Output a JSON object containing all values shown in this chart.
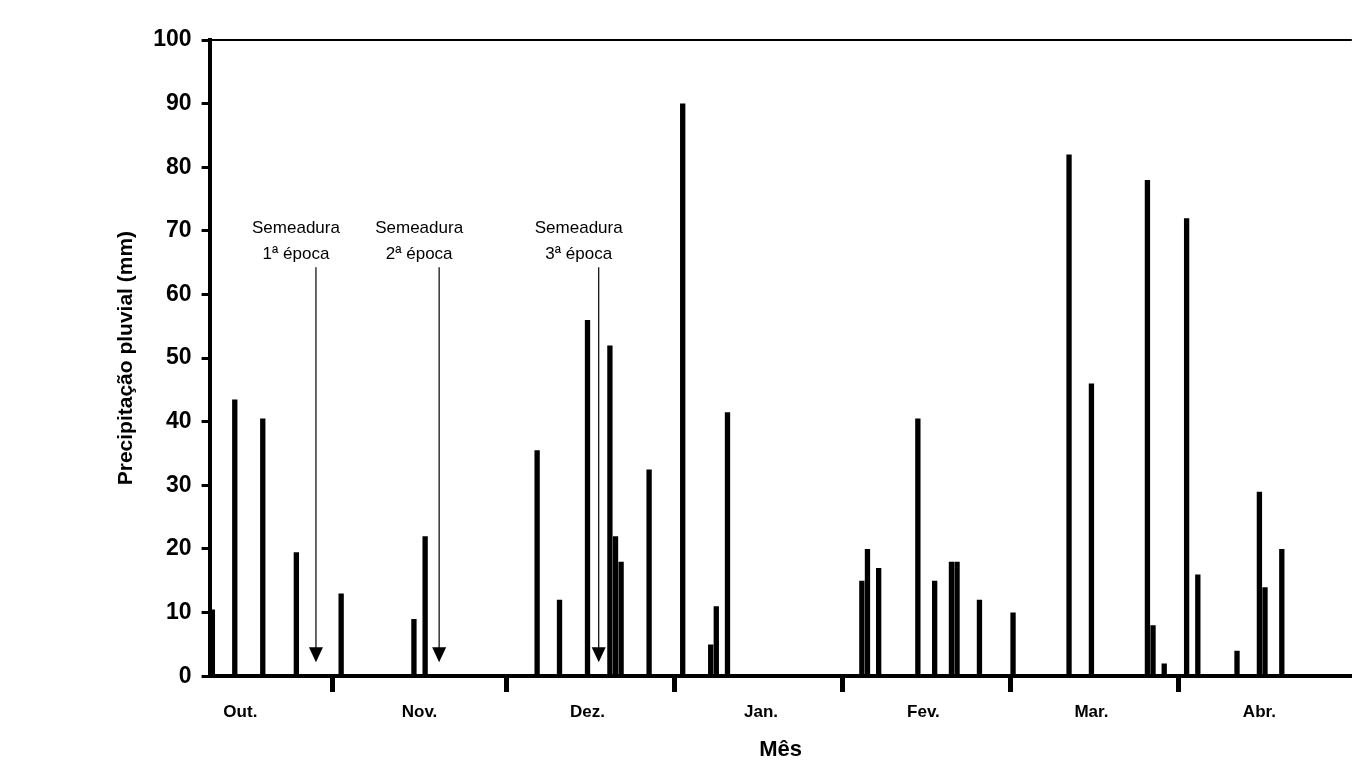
{
  "chart_data": {
    "type": "bar",
    "xlabel": "Mês",
    "ylabel": "Precipitação pluvial (mm)",
    "categories": [
      null,
      null,
      null,
      null,
      null,
      "Out.",
      null,
      null,
      null,
      null,
      null,
      null,
      null,
      null,
      null,
      null,
      null,
      null,
      null,
      null,
      null,
      null,
      null,
      null,
      null,
      null,
      null,
      null,
      null,
      null,
      null,
      null,
      null,
      null,
      null,
      null,
      null,
      "Nov.",
      null,
      null,
      null,
      null,
      null,
      null,
      null,
      null,
      null,
      null,
      null,
      null,
      null,
      null,
      null,
      null,
      null,
      null,
      null,
      null,
      null,
      null,
      null,
      null,
      null,
      null,
      null,
      null,
      null,
      "Dez.",
      null,
      null,
      null,
      null,
      null,
      null,
      null,
      null,
      null,
      null,
      null,
      null,
      null,
      null,
      null,
      null,
      null,
      null,
      null,
      null,
      null,
      null,
      null,
      null,
      null,
      null,
      null,
      null,
      null,
      null,
      "Jan.",
      null,
      null,
      null,
      null,
      null,
      null,
      null,
      null,
      null,
      null,
      null,
      null,
      null,
      null,
      null,
      null,
      null,
      null,
      null,
      null,
      null,
      null,
      null,
      null,
      null,
      null,
      null,
      null,
      "Fev.",
      null,
      null,
      null,
      null,
      null,
      null,
      null,
      null,
      null,
      null,
      null,
      null,
      null,
      null,
      null,
      null,
      null,
      null,
      null,
      null,
      null,
      null,
      null,
      null,
      null,
      null,
      null,
      null,
      null,
      "Mar.",
      null,
      null,
      null,
      null,
      null,
      null,
      null,
      null,
      null,
      null,
      null,
      null,
      null,
      null,
      null,
      null,
      null,
      null,
      null,
      null,
      null,
      null,
      null,
      null,
      null,
      null,
      null,
      null,
      null,
      "Abr.",
      null,
      null,
      null,
      null,
      null,
      null,
      null,
      null,
      null,
      null,
      null,
      null,
      null,
      null,
      null,
      null
    ],
    "values": [
      10.5,
      null,
      null,
      null,
      43.5,
      null,
      null,
      null,
      null,
      40.5,
      null,
      null,
      null,
      null,
      null,
      19.5,
      null,
      null,
      null,
      null,
      null,
      null,
      null,
      13,
      null,
      null,
      null,
      null,
      null,
      null,
      null,
      null,
      null,
      null,
      null,
      null,
      9,
      null,
      22,
      null,
      null,
      null,
      null,
      null,
      null,
      null,
      null,
      null,
      null,
      null,
      null,
      null,
      null,
      null,
      null,
      null,
      null,
      null,
      35.5,
      null,
      null,
      null,
      12,
      null,
      null,
      null,
      null,
      56,
      null,
      null,
      null,
      52,
      22,
      18,
      null,
      null,
      null,
      null,
      32.5,
      null,
      null,
      null,
      null,
      null,
      90,
      null,
      null,
      null,
      null,
      5,
      11,
      null,
      41.5,
      null,
      null,
      null,
      null,
      null,
      null,
      null,
      null,
      null,
      null,
      null,
      null,
      null,
      null,
      null,
      null,
      null,
      null,
      null,
      null,
      null,
      null,
      null,
      15,
      20,
      null,
      17,
      null,
      null,
      null,
      null,
      null,
      null,
      40.5,
      null,
      null,
      15,
      null,
      null,
      18,
      18,
      null,
      null,
      null,
      12,
      null,
      null,
      null,
      null,
      null,
      10,
      null,
      null,
      null,
      null,
      null,
      null,
      null,
      null,
      null,
      82,
      null,
      null,
      null,
      46,
      null,
      null,
      null,
      null,
      null,
      null,
      null,
      null,
      null,
      78,
      8,
      null,
      2,
      null,
      null,
      null,
      72,
      null,
      16,
      null,
      null,
      null,
      null,
      null,
      null,
      4,
      null,
      null,
      null,
      29,
      14,
      null,
      null,
      20,
      null,
      null,
      null,
      null,
      null,
      null,
      null,
      null,
      null,
      null,
      null,
      null
    ],
    "color": "#000000",
    "ylim": [
      0,
      100
    ],
    "yticks": [
      0,
      10,
      20,
      30,
      40,
      50,
      60,
      70,
      80,
      90,
      100
    ],
    "annotations": [
      "Semeadura\n1ª época",
      "Semeadura\n2ª época",
      "Semeadura\n3ª época"
    ],
    "grid": false,
    "legend": false
  }
}
